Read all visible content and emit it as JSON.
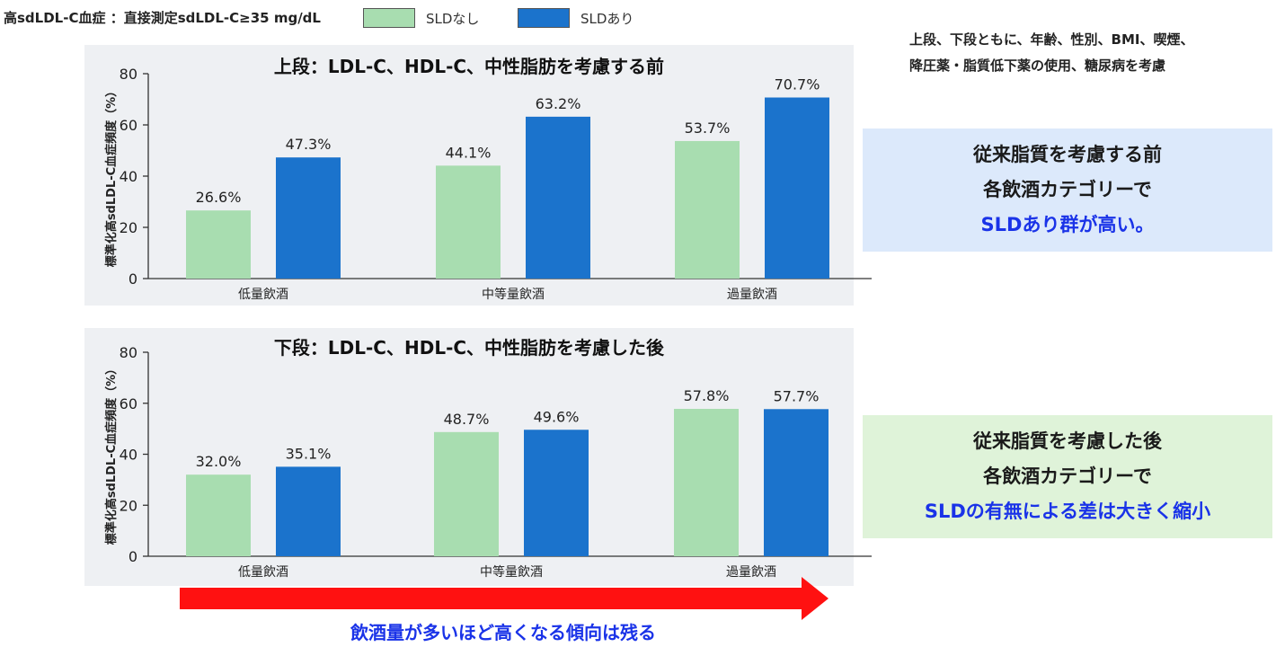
{
  "header": {
    "title": "高sdLDL-C血症 ：直接測定sdLDL-C≥35 mg/dL"
  },
  "legend": [
    {
      "label": "SLDなし",
      "color": "#a8ddb0"
    },
    {
      "label": "SLDあり",
      "color": "#1b73cc"
    }
  ],
  "note": {
    "line1": "上段、下段ともに、年齢、性別、BMI、喫煙、",
    "line2": "降圧薬・脂質低下薬の使用、糖尿病を考慮"
  },
  "chart_data": [
    {
      "type": "bar",
      "title": "上段：LDL-C、HDL-C、中性脂肪を考慮する前",
      "ylabel": "標準化高sdLDL-C血症頻度（%）",
      "xlabel": "",
      "categories": [
        "低量飲酒",
        "中等量飲酒",
        "過量飲酒"
      ],
      "series": [
        {
          "name": "SLDなし",
          "values": [
            26.6,
            44.1,
            53.7
          ],
          "labels": [
            "26.6%",
            "44.1%",
            "53.7%"
          ],
          "color": "#a8ddb0"
        },
        {
          "name": "SLDあり",
          "values": [
            47.3,
            63.2,
            70.7
          ],
          "labels": [
            "47.3%",
            "63.2%",
            "70.7%"
          ],
          "color": "#1b73cc"
        }
      ],
      "ylim": [
        0,
        80
      ],
      "yticks": [
        0,
        20,
        40,
        60,
        80
      ],
      "legend": "top"
    },
    {
      "type": "bar",
      "title": "下段：LDL-C、HDL-C、中性脂肪を考慮した後",
      "ylabel": "標準化高sdLDL-C血症頻度（%）",
      "xlabel": "",
      "categories": [
        "低量飲酒",
        "中等量飲酒",
        "過量飲酒"
      ],
      "series": [
        {
          "name": "SLDなし",
          "values": [
            32.0,
            48.7,
            57.8
          ],
          "labels": [
            "32.0%",
            "48.7%",
            "57.8%"
          ],
          "color": "#a8ddb0"
        },
        {
          "name": "SLDあり",
          "values": [
            35.1,
            49.6,
            57.7
          ],
          "labels": [
            "35.1%",
            "49.6%",
            "57.7%"
          ],
          "color": "#1b73cc"
        }
      ],
      "ylim": [
        0,
        80
      ],
      "yticks": [
        0,
        20,
        40,
        60,
        80
      ],
      "legend": "top"
    }
  ],
  "box_before": {
    "line1": "従来脂質を考慮する前",
    "line2": "各飲酒カテゴリーで",
    "line3": "SLDあり群が高い。"
  },
  "box_after": {
    "line1": "従来脂質を考慮した後",
    "line2": "各飲酒カテゴリーで",
    "line3": "SLDの有無による差は大きく縮小"
  },
  "trend": {
    "text": "飲酒量が多いほど高くなる傾向は残る",
    "arrow_color": "#ff1111"
  }
}
